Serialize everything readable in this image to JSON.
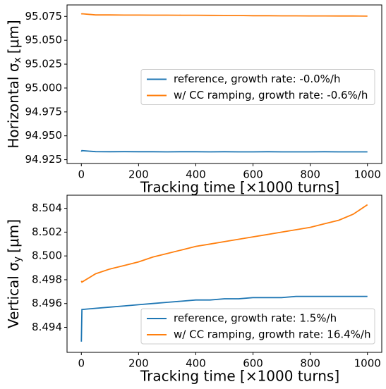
{
  "chart_data": [
    {
      "type": "line",
      "ylabel": "Horizontal σ",
      "ylabel_subscript": "x",
      "ylabel_unit": "[μm]",
      "xlabel": "Tracking time [×1000 turns]",
      "x": [
        0,
        2,
        50,
        100,
        150,
        200,
        250,
        300,
        350,
        400,
        450,
        500,
        550,
        600,
        650,
        700,
        750,
        800,
        850,
        900,
        950,
        1000
      ],
      "series": [
        {
          "name": "reference, growth rate: -0.0%/h",
          "color": "#1f77b4",
          "values": [
            94.9335,
            94.9345,
            94.9334,
            94.9333,
            94.9334,
            94.9333,
            94.9333,
            94.9332,
            94.9333,
            94.9333,
            94.9332,
            94.9333,
            94.9332,
            94.9332,
            94.9333,
            94.9332,
            94.9332,
            94.9332,
            94.9333,
            94.9332,
            94.9332,
            94.9332
          ]
        },
        {
          "name": "w/ CC ramping, growth rate: -0.6%/h",
          "color": "#ff7f0e",
          "values": [
            95.0772,
            95.0778,
            95.0765,
            95.0765,
            95.0764,
            95.0764,
            95.0763,
            95.0763,
            95.0762,
            95.0762,
            95.0761,
            95.076,
            95.0759,
            95.0757,
            95.0757,
            95.0756,
            95.0756,
            95.0755,
            95.0755,
            95.0754,
            95.0754,
            95.0753
          ]
        }
      ],
      "xlim": [
        -50,
        1050
      ],
      "xticks": [
        0,
        200,
        400,
        600,
        800,
        1000
      ],
      "ylim": [
        94.921,
        95.087
      ],
      "yticks": [
        94.925,
        {
          "value": 94.95,
          "label": "94.950"
        },
        94.975,
        {
          "value": 95,
          "label": "95.000"
        },
        95.025,
        {
          "value": 95.05,
          "label": "95.050"
        },
        95.075
      ],
      "legend": "center right"
    },
    {
      "type": "line",
      "ylabel": "Vertical σ",
      "ylabel_subscript": "y",
      "ylabel_unit": "[μm]",
      "xlabel": "Tracking time [×1000 turns]",
      "x": [
        0,
        2,
        50,
        100,
        150,
        200,
        250,
        300,
        350,
        400,
        450,
        500,
        550,
        600,
        650,
        700,
        750,
        800,
        850,
        900,
        950,
        1000
      ],
      "series": [
        {
          "name": "reference, growth rate: 1.5%/h",
          "color": "#1f77b4",
          "values": [
            8.4928,
            8.4955,
            8.4956,
            8.4957,
            8.4958,
            8.4959,
            8.496,
            8.4961,
            8.4962,
            8.4963,
            8.4963,
            8.4964,
            8.4964,
            8.4965,
            8.4965,
            8.4965,
            8.4966,
            8.4966,
            8.4966,
            8.4966,
            8.4966,
            8.4966
          ]
        },
        {
          "name": "w/ CC ramping, growth rate: 16.4%/h",
          "color": "#ff7f0e",
          "values": [
            8.4979,
            8.4978,
            8.4985,
            8.4989,
            8.4992,
            8.4995,
            8.4999,
            8.5002,
            8.5005,
            8.5008,
            8.501,
            8.5012,
            8.5014,
            8.5016,
            8.5018,
            8.502,
            8.5022,
            8.5024,
            8.5027,
            8.503,
            8.5035,
            8.5043
          ]
        }
      ],
      "xlim": [
        -50,
        1050
      ],
      "xticks": [
        0,
        200,
        400,
        600,
        800,
        1000
      ],
      "ylim": [
        8.4919,
        8.5051
      ],
      "yticks": [
        8.494,
        8.496,
        8.498,
        {
          "value": 8.5,
          "label": "8.500"
        },
        8.502,
        8.504
      ],
      "legend": "lower right"
    }
  ]
}
